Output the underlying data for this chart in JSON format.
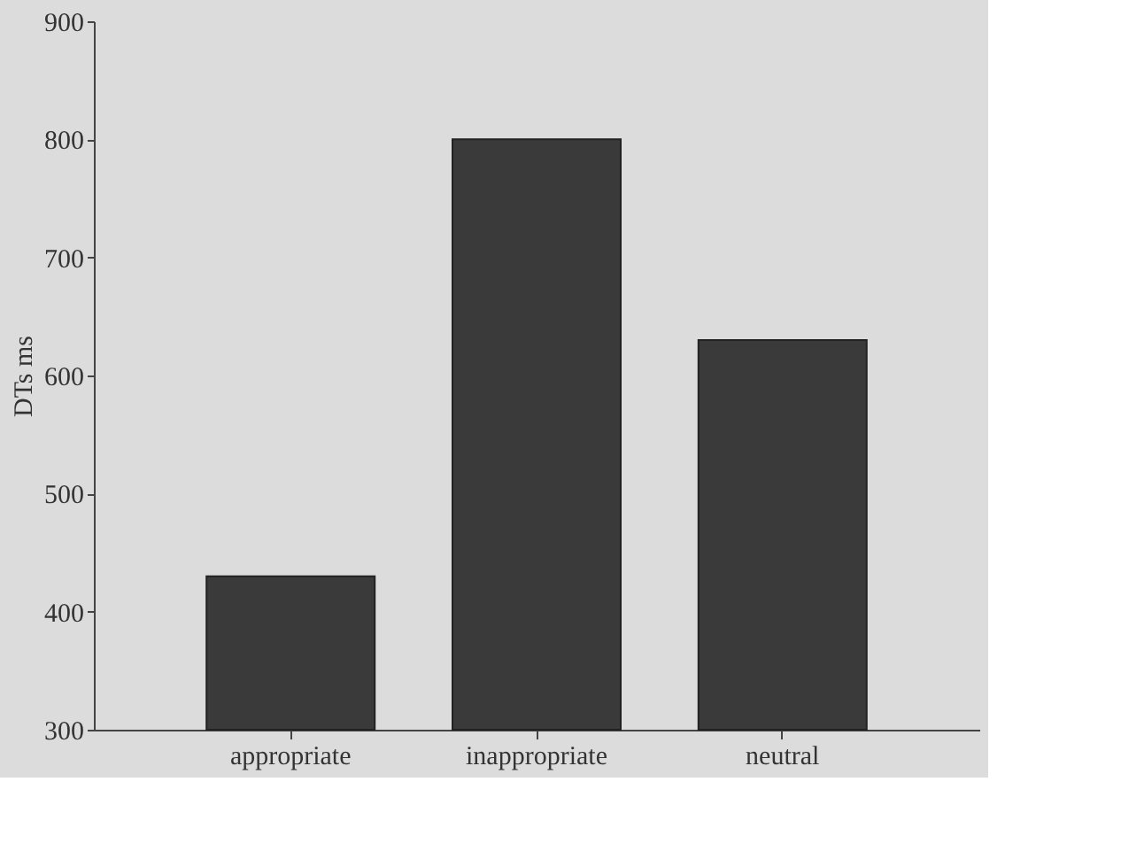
{
  "chart_data": {
    "type": "bar",
    "ylabel": "DTs ms",
    "categories": [
      "appropriate",
      "inappropriate",
      "neutral"
    ],
    "values": [
      430,
      800,
      630
    ],
    "color": "#3a3a3a",
    "ylim": [
      300,
      900
    ],
    "yticks": [
      300,
      400,
      500,
      600,
      700,
      800,
      900
    ]
  }
}
